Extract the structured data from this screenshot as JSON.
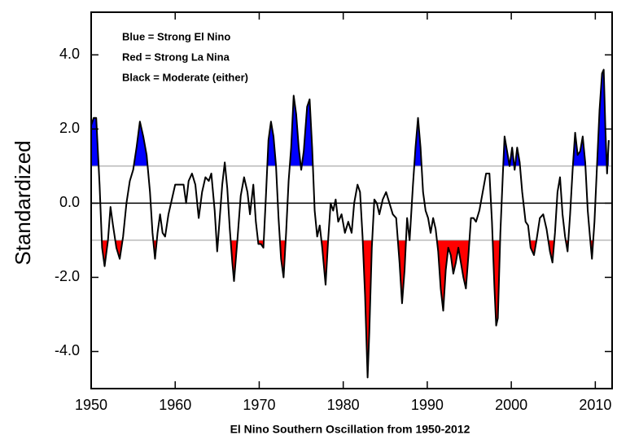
{
  "chart_data": {
    "type": "line",
    "xlabel": "El Nino Southern Oscillation from 1950-2012",
    "ylabel": "Standardized",
    "annotations": [
      "Blue = Strong El Nino",
      "Red = Strong La Nina",
      "Black = Moderate (either)"
    ],
    "xlim": [
      1950,
      2012
    ],
    "ylim": [
      -5,
      5.15
    ],
    "xticks": [
      1950,
      1960,
      1970,
      1980,
      1990,
      2000,
      2010
    ],
    "yticks": [
      {
        "value": 4,
        "label": "4.0"
      },
      {
        "value": 2,
        "label": "2.0"
      },
      {
        "value": 0,
        "label": "0.0"
      },
      {
        "value": -2,
        "label": "-2.0"
      },
      {
        "value": -4,
        "label": "-4.0"
      }
    ],
    "reference_lines": [
      0,
      1,
      -1
    ],
    "line_color": "#000000",
    "above_color": "#0000ff",
    "below_color": "#ff0000",
    "x": [
      1950.0,
      1950.3,
      1950.6,
      1951.0,
      1951.3,
      1951.6,
      1952.0,
      1952.3,
      1952.6,
      1953.0,
      1953.4,
      1953.8,
      1954.2,
      1954.6,
      1955.0,
      1955.4,
      1955.8,
      1956.2,
      1956.6,
      1957.0,
      1957.3,
      1957.6,
      1957.9,
      1958.2,
      1958.5,
      1958.8,
      1959.2,
      1959.6,
      1960.0,
      1960.5,
      1961.0,
      1961.3,
      1961.6,
      1962.0,
      1962.4,
      1962.8,
      1963.2,
      1963.6,
      1964.0,
      1964.3,
      1964.7,
      1965.0,
      1965.3,
      1965.6,
      1965.9,
      1966.2,
      1966.5,
      1966.8,
      1967.0,
      1967.4,
      1967.8,
      1968.2,
      1968.6,
      1968.9,
      1969.3,
      1969.6,
      1969.9,
      1970.2,
      1970.5,
      1970.8,
      1971.1,
      1971.4,
      1971.7,
      1972.0,
      1972.3,
      1972.6,
      1972.9,
      1973.2,
      1973.5,
      1973.8,
      1974.1,
      1974.4,
      1974.7,
      1975.0,
      1975.3,
      1975.7,
      1976.0,
      1976.3,
      1976.6,
      1976.9,
      1977.2,
      1977.5,
      1977.9,
      1978.2,
      1978.5,
      1978.8,
      1979.1,
      1979.4,
      1979.8,
      1980.2,
      1980.6,
      1981.0,
      1981.3,
      1981.7,
      1982.0,
      1982.3,
      1982.6,
      1982.9,
      1983.1,
      1983.4,
      1983.7,
      1984.0,
      1984.3,
      1984.7,
      1985.1,
      1985.5,
      1985.9,
      1986.3,
      1986.7,
      1987.0,
      1987.3,
      1987.6,
      1987.9,
      1988.3,
      1988.6,
      1988.9,
      1989.2,
      1989.5,
      1989.8,
      1990.1,
      1990.4,
      1990.7,
      1991.0,
      1991.3,
      1991.6,
      1991.9,
      1992.2,
      1992.5,
      1992.8,
      1993.1,
      1993.4,
      1993.7,
      1994.0,
      1994.3,
      1994.6,
      1994.9,
      1995.2,
      1995.5,
      1995.8,
      1996.2,
      1996.6,
      1997.0,
      1997.4,
      1997.7,
      1998.0,
      1998.2,
      1998.4,
      1998.7,
      1999.0,
      1999.2,
      1999.5,
      1999.8,
      2000.1,
      2000.4,
      2000.7,
      2001.0,
      2001.3,
      2001.7,
      2002.0,
      2002.3,
      2002.7,
      2003.0,
      2003.4,
      2003.8,
      2004.2,
      2004.6,
      2004.9,
      2005.2,
      2005.5,
      2005.8,
      2006.1,
      2006.4,
      2006.7,
      2007.0,
      2007.3,
      2007.6,
      2007.9,
      2008.2,
      2008.5,
      2008.8,
      2009.1,
      2009.4,
      2009.6,
      2009.9,
      2010.2,
      2010.5,
      2010.8,
      2011.0,
      2011.2,
      2011.4,
      2011.6
    ],
    "values": [
      2.1,
      2.3,
      2.3,
      0.5,
      -1.2,
      -1.7,
      -1.0,
      -0.1,
      -0.6,
      -1.2,
      -1.5,
      -0.9,
      0.0,
      0.6,
      0.9,
      1.5,
      2.2,
      1.8,
      1.3,
      0.3,
      -0.8,
      -1.5,
      -0.8,
      -0.3,
      -0.8,
      -0.9,
      -0.3,
      0.1,
      0.5,
      0.5,
      0.5,
      0.0,
      0.6,
      0.8,
      0.5,
      -0.4,
      0.3,
      0.7,
      0.6,
      0.8,
      -0.2,
      -1.3,
      -0.4,
      0.5,
      1.1,
      0.4,
      -0.7,
      -1.6,
      -2.1,
      -1.0,
      0.2,
      0.7,
      0.3,
      -0.3,
      0.5,
      -0.5,
      -1.1,
      -1.1,
      -1.2,
      0.2,
      1.7,
      2.2,
      1.8,
      1.0,
      -0.4,
      -1.5,
      -2.0,
      -0.8,
      0.6,
      1.5,
      2.9,
      2.4,
      1.5,
      0.9,
      1.4,
      2.6,
      2.8,
      1.5,
      -0.2,
      -0.9,
      -0.6,
      -1.2,
      -2.2,
      -1.0,
      0.0,
      -0.2,
      0.1,
      -0.5,
      -0.3,
      -0.8,
      -0.5,
      -0.8,
      0.0,
      0.5,
      0.3,
      -0.9,
      -2.5,
      -4.7,
      -3.5,
      -1.2,
      0.1,
      0.0,
      -0.3,
      0.1,
      0.3,
      0.0,
      -0.3,
      -0.4,
      -1.6,
      -2.7,
      -1.8,
      -0.4,
      -1.0,
      0.5,
      1.5,
      2.3,
      1.5,
      0.3,
      -0.2,
      -0.4,
      -0.8,
      -0.4,
      -0.7,
      -1.3,
      -2.3,
      -2.9,
      -1.8,
      -1.2,
      -1.4,
      -1.9,
      -1.6,
      -1.2,
      -1.6,
      -2.0,
      -2.3,
      -1.4,
      -0.4,
      -0.4,
      -0.5,
      -0.2,
      0.3,
      0.8,
      0.8,
      -0.5,
      -2.3,
      -3.3,
      -3.1,
      -0.8,
      0.8,
      1.8,
      1.4,
      1.0,
      1.5,
      0.9,
      1.5,
      1.1,
      0.3,
      -0.5,
      -0.6,
      -1.2,
      -1.4,
      -1.0,
      -0.4,
      -0.3,
      -0.7,
      -1.3,
      -1.6,
      -0.8,
      0.3,
      0.7,
      -0.3,
      -0.9,
      -1.3,
      -0.3,
      0.9,
      1.9,
      1.3,
      1.4,
      1.8,
      1.1,
      -0.2,
      -1.0,
      -1.5,
      -0.5,
      1.0,
      2.5,
      3.5,
      3.6,
      2.0,
      0.8,
      1.7
    ]
  }
}
